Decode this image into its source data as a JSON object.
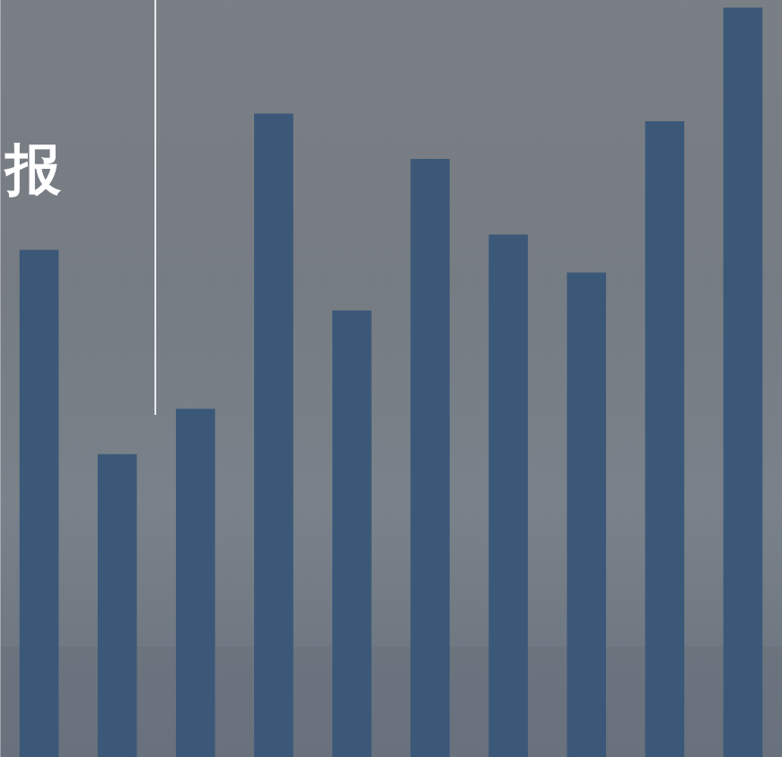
{
  "chart_data": {
    "type": "bar",
    "title": "报",
    "categories": [
      null,
      null,
      null,
      null,
      null,
      null,
      null,
      null,
      null,
      null
    ],
    "values": [
      67,
      40,
      46,
      85,
      59,
      79,
      69,
      64,
      84,
      99
    ],
    "color": "#3b5878",
    "ylim": [
      0,
      100
    ],
    "grid": false,
    "tick_labels": false
  }
}
